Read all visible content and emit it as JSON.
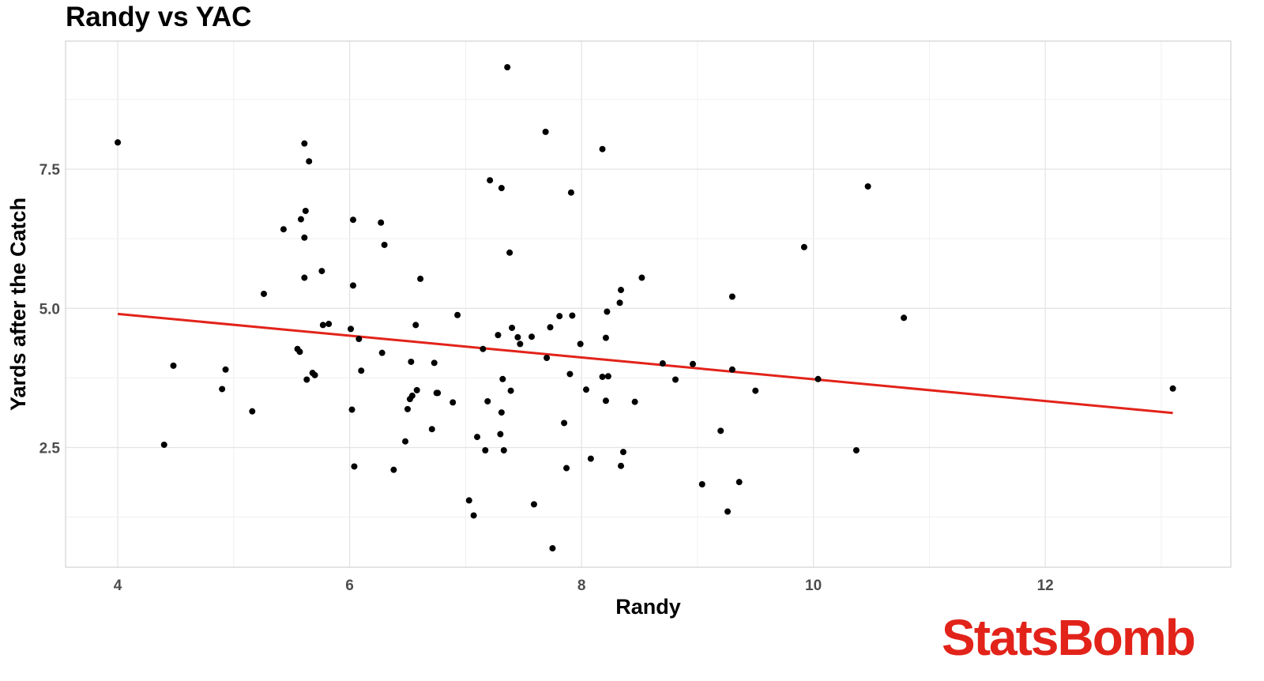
{
  "chart_data": {
    "type": "scatter",
    "title": "Randy vs YAC",
    "xlabel": "Randy",
    "ylabel": "Yards after the Catch",
    "xlim": [
      3.55,
      13.6
    ],
    "ylim": [
      0.35,
      9.8
    ],
    "x_ticks": [
      4,
      6,
      8,
      10,
      12
    ],
    "y_ticks": [
      2.5,
      5.0,
      7.5
    ],
    "x_tick_labels": [
      "4",
      "6",
      "8",
      "10",
      "12"
    ],
    "y_tick_labels": [
      "2.5",
      "5.0",
      "7.5"
    ],
    "grid": true,
    "point_color": "#000000",
    "trendline": {
      "color": "#e2231a",
      "x": [
        4.0,
        13.1
      ],
      "y": [
        4.9,
        3.12
      ]
    },
    "points": [
      {
        "x": 4.0,
        "y": 7.98
      },
      {
        "x": 4.4,
        "y": 2.55
      },
      {
        "x": 4.48,
        "y": 3.97
      },
      {
        "x": 4.9,
        "y": 3.55
      },
      {
        "x": 4.93,
        "y": 3.9
      },
      {
        "x": 5.16,
        "y": 3.15
      },
      {
        "x": 5.26,
        "y": 5.26
      },
      {
        "x": 5.43,
        "y": 6.42
      },
      {
        "x": 5.55,
        "y": 4.27
      },
      {
        "x": 5.57,
        "y": 4.22
      },
      {
        "x": 5.58,
        "y": 6.6
      },
      {
        "x": 5.61,
        "y": 7.96
      },
      {
        "x": 5.61,
        "y": 6.27
      },
      {
        "x": 5.61,
        "y": 5.55
      },
      {
        "x": 5.62,
        "y": 6.75
      },
      {
        "x": 5.63,
        "y": 3.72
      },
      {
        "x": 5.65,
        "y": 7.64
      },
      {
        "x": 5.68,
        "y": 3.84
      },
      {
        "x": 5.7,
        "y": 3.8
      },
      {
        "x": 5.76,
        "y": 5.67
      },
      {
        "x": 5.77,
        "y": 4.7
      },
      {
        "x": 5.82,
        "y": 4.72
      },
      {
        "x": 6.01,
        "y": 4.63
      },
      {
        "x": 6.02,
        "y": 3.18
      },
      {
        "x": 6.03,
        "y": 6.59
      },
      {
        "x": 6.03,
        "y": 5.41
      },
      {
        "x": 6.04,
        "y": 2.16
      },
      {
        "x": 6.08,
        "y": 4.45
      },
      {
        "x": 6.1,
        "y": 3.88
      },
      {
        "x": 6.27,
        "y": 6.54
      },
      {
        "x": 6.28,
        "y": 4.2
      },
      {
        "x": 6.3,
        "y": 6.14
      },
      {
        "x": 6.38,
        "y": 2.1
      },
      {
        "x": 6.48,
        "y": 2.61
      },
      {
        "x": 6.5,
        "y": 3.19
      },
      {
        "x": 6.52,
        "y": 3.37
      },
      {
        "x": 6.53,
        "y": 4.04
      },
      {
        "x": 6.54,
        "y": 3.43
      },
      {
        "x": 6.57,
        "y": 4.7
      },
      {
        "x": 6.58,
        "y": 3.53
      },
      {
        "x": 6.61,
        "y": 5.53
      },
      {
        "x": 6.71,
        "y": 2.83
      },
      {
        "x": 6.73,
        "y": 4.02
      },
      {
        "x": 6.75,
        "y": 3.48
      },
      {
        "x": 6.76,
        "y": 3.48
      },
      {
        "x": 6.89,
        "y": 3.31
      },
      {
        "x": 6.93,
        "y": 4.88
      },
      {
        "x": 7.03,
        "y": 1.55
      },
      {
        "x": 7.07,
        "y": 1.28
      },
      {
        "x": 7.1,
        "y": 2.69
      },
      {
        "x": 7.15,
        "y": 4.27
      },
      {
        "x": 7.17,
        "y": 2.45
      },
      {
        "x": 7.19,
        "y": 3.33
      },
      {
        "x": 7.21,
        "y": 7.3
      },
      {
        "x": 7.28,
        "y": 4.52
      },
      {
        "x": 7.3,
        "y": 2.74
      },
      {
        "x": 7.31,
        "y": 7.16
      },
      {
        "x": 7.31,
        "y": 3.13
      },
      {
        "x": 7.32,
        "y": 3.73
      },
      {
        "x": 7.33,
        "y": 2.45
      },
      {
        "x": 7.36,
        "y": 9.33
      },
      {
        "x": 7.38,
        "y": 6.0
      },
      {
        "x": 7.39,
        "y": 3.52
      },
      {
        "x": 7.4,
        "y": 4.65
      },
      {
        "x": 7.45,
        "y": 4.48
      },
      {
        "x": 7.47,
        "y": 4.36
      },
      {
        "x": 7.57,
        "y": 4.49
      },
      {
        "x": 7.59,
        "y": 1.48
      },
      {
        "x": 7.69,
        "y": 8.17
      },
      {
        "x": 7.7,
        "y": 4.11
      },
      {
        "x": 7.73,
        "y": 4.66
      },
      {
        "x": 7.75,
        "y": 0.69
      },
      {
        "x": 7.81,
        "y": 4.86
      },
      {
        "x": 7.85,
        "y": 2.94
      },
      {
        "x": 7.87,
        "y": 2.13
      },
      {
        "x": 7.9,
        "y": 3.82
      },
      {
        "x": 7.91,
        "y": 7.08
      },
      {
        "x": 7.92,
        "y": 4.87
      },
      {
        "x": 7.99,
        "y": 4.36
      },
      {
        "x": 8.04,
        "y": 3.54
      },
      {
        "x": 8.08,
        "y": 2.3
      },
      {
        "x": 8.18,
        "y": 7.86
      },
      {
        "x": 8.18,
        "y": 3.77
      },
      {
        "x": 8.21,
        "y": 4.47
      },
      {
        "x": 8.21,
        "y": 3.34
      },
      {
        "x": 8.22,
        "y": 4.94
      },
      {
        "x": 8.23,
        "y": 3.78
      },
      {
        "x": 8.33,
        "y": 5.1
      },
      {
        "x": 8.34,
        "y": 5.33
      },
      {
        "x": 8.34,
        "y": 2.17
      },
      {
        "x": 8.36,
        "y": 2.42
      },
      {
        "x": 8.46,
        "y": 3.32
      },
      {
        "x": 8.52,
        "y": 5.55
      },
      {
        "x": 8.7,
        "y": 4.01
      },
      {
        "x": 8.81,
        "y": 3.72
      },
      {
        "x": 8.96,
        "y": 4.0
      },
      {
        "x": 9.04,
        "y": 1.84
      },
      {
        "x": 9.2,
        "y": 2.8
      },
      {
        "x": 9.26,
        "y": 1.35
      },
      {
        "x": 9.3,
        "y": 5.21
      },
      {
        "x": 9.3,
        "y": 3.9
      },
      {
        "x": 9.36,
        "y": 1.88
      },
      {
        "x": 9.5,
        "y": 3.52
      },
      {
        "x": 9.92,
        "y": 6.1
      },
      {
        "x": 10.04,
        "y": 3.73
      },
      {
        "x": 10.37,
        "y": 2.45
      },
      {
        "x": 10.47,
        "y": 7.19
      },
      {
        "x": 10.78,
        "y": 4.83
      },
      {
        "x": 13.1,
        "y": 3.56
      }
    ]
  },
  "brand": {
    "logo_text": "StatsBomb",
    "color": "#e2231a"
  }
}
